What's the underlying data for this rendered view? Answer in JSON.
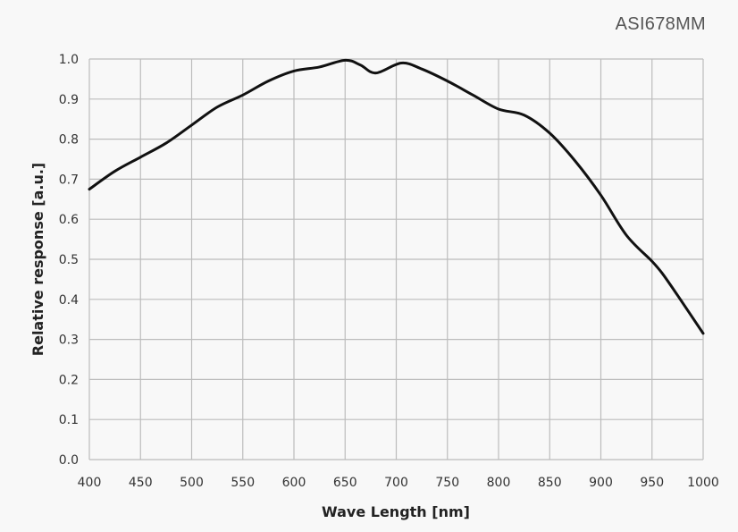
{
  "chart_data": {
    "type": "line",
    "title": "ASI678MM",
    "xlabel": "Wave Length [nm]",
    "ylabel": "Relative response [a.u.]",
    "xlim": [
      400,
      1000
    ],
    "ylim": [
      0.0,
      1.0
    ],
    "x_ticks": [
      400,
      450,
      500,
      550,
      600,
      650,
      700,
      750,
      800,
      850,
      900,
      950,
      1000
    ],
    "y_ticks": [
      "0.0",
      "0.1",
      "0.2",
      "0.3",
      "0.4",
      "0.5",
      "0.6",
      "0.7",
      "0.8",
      "0.9",
      "1.0"
    ],
    "grid": true,
    "legend": null,
    "series": [
      {
        "name": "ASI678MM",
        "color": "#111111",
        "x": [
          400,
          425,
          450,
          475,
          500,
          525,
          550,
          575,
          600,
          625,
          650,
          665,
          680,
          705,
          725,
          750,
          775,
          800,
          825,
          850,
          875,
          900,
          925,
          950,
          960,
          975,
          1000
        ],
        "values": [
          0.675,
          0.72,
          0.755,
          0.79,
          0.835,
          0.88,
          0.91,
          0.945,
          0.97,
          0.98,
          0.997,
          0.985,
          0.965,
          0.99,
          0.975,
          0.945,
          0.91,
          0.875,
          0.86,
          0.815,
          0.745,
          0.66,
          0.56,
          0.495,
          0.465,
          0.41,
          0.315
        ]
      }
    ]
  }
}
